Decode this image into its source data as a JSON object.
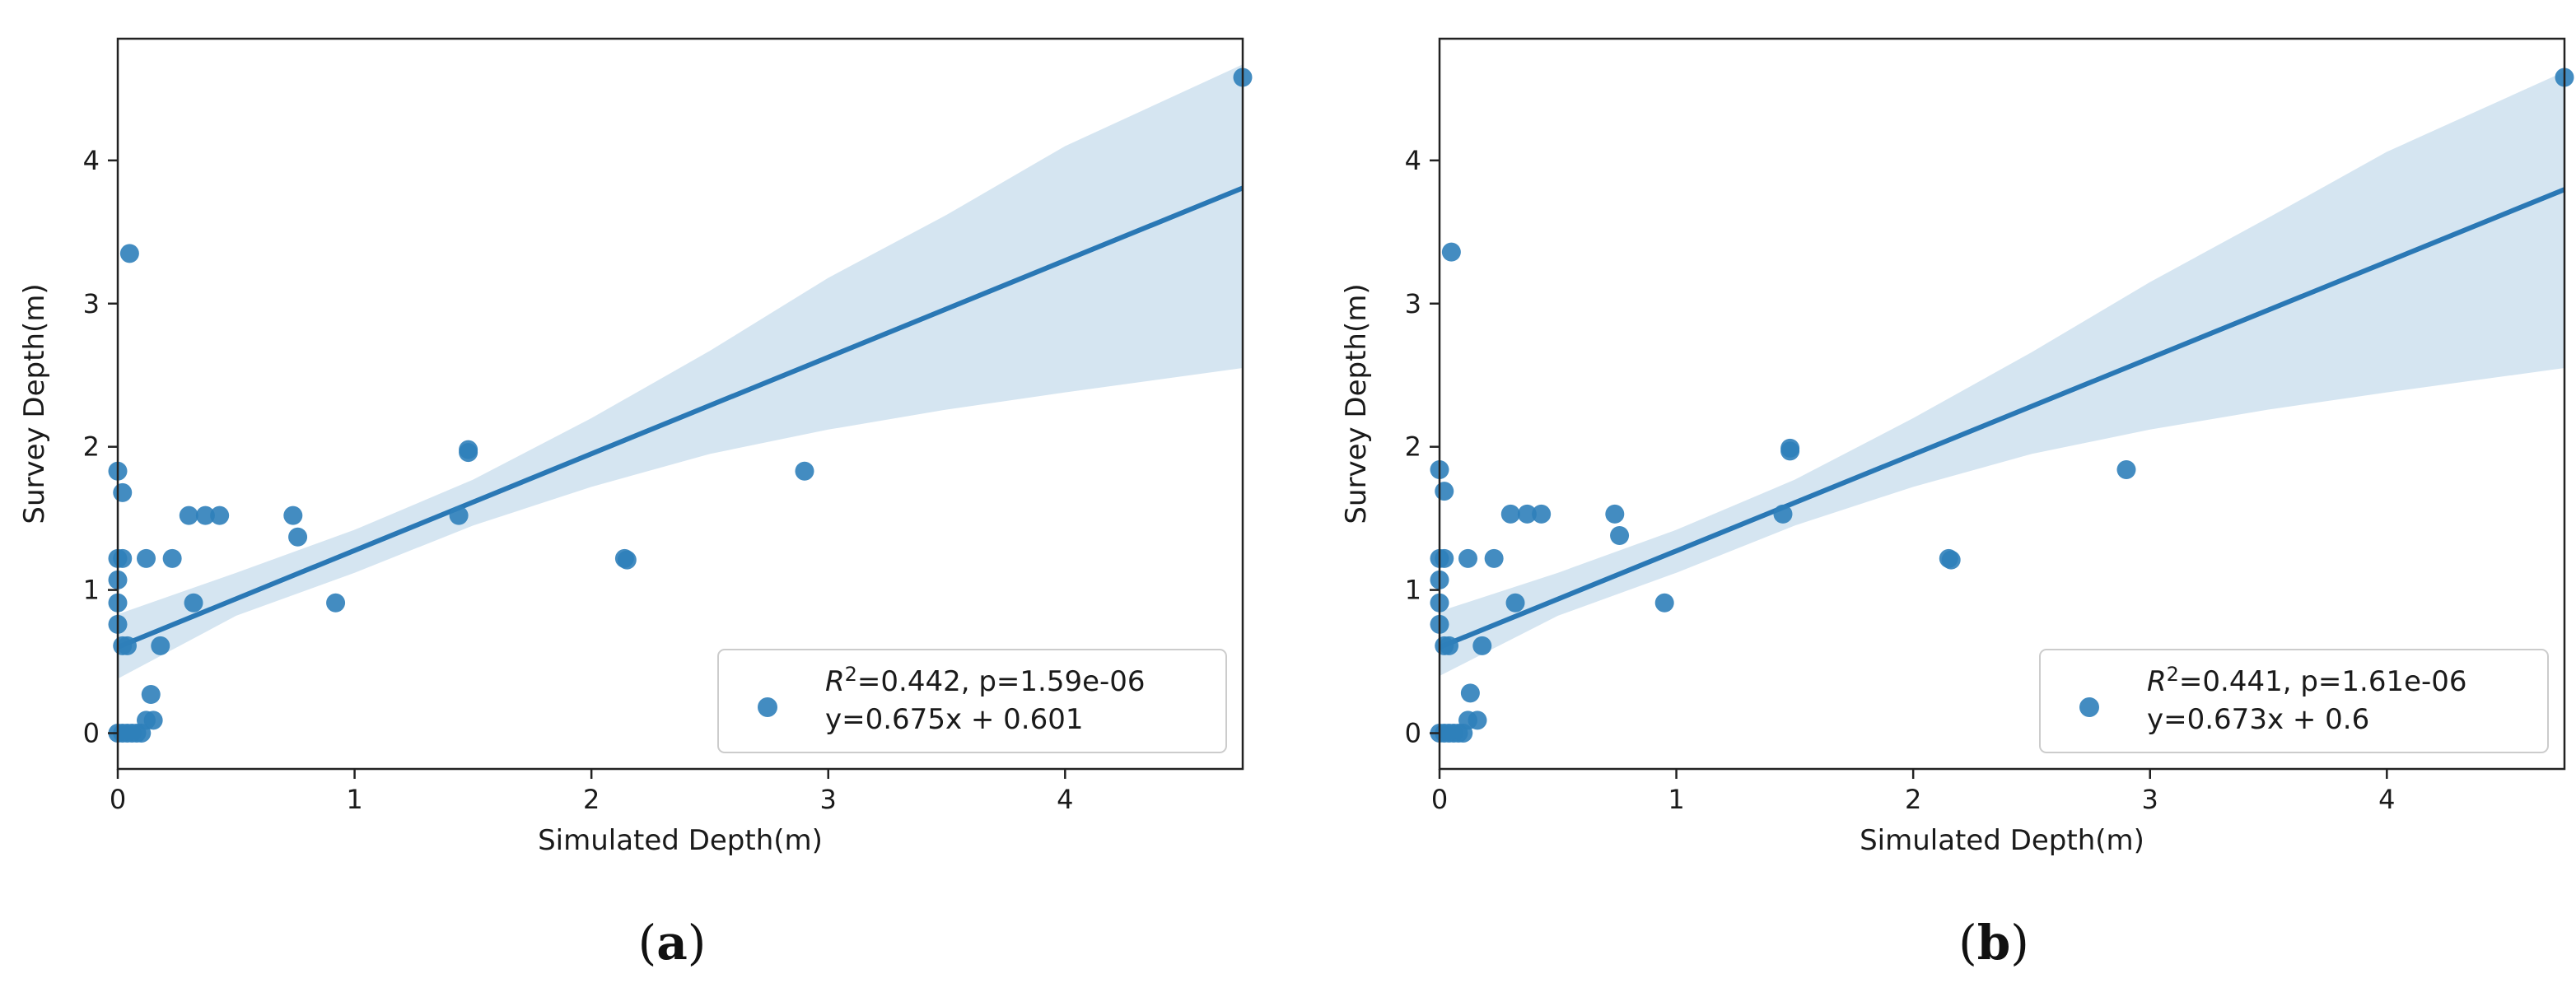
{
  "colors": {
    "point": "#2f7fba",
    "line": "#2a78b5",
    "band": "#d5e5f1",
    "axis": "#222222"
  },
  "chart_data": [
    {
      "type": "scatter",
      "panel_label_open": "(",
      "panel_label_letter": "a",
      "panel_label_close": ")",
      "xlabel": "Simulated Depth(m)",
      "ylabel": "Survey Depth(m)",
      "xlim": [
        0,
        4.75
      ],
      "ylim": [
        -0.25,
        4.85
      ],
      "xticks": [
        0,
        1,
        2,
        3,
        4
      ],
      "yticks": [
        0,
        1,
        2,
        3,
        4
      ],
      "regression": {
        "slope": 0.675,
        "intercept": 0.601
      },
      "confidence_band": [
        {
          "x": 0,
          "lower": 0.38,
          "upper": 0.83
        },
        {
          "x": 0.5,
          "lower": 0.82,
          "upper": 1.12
        },
        {
          "x": 1,
          "lower": 1.12,
          "upper": 1.42
        },
        {
          "x": 1.5,
          "lower": 1.45,
          "upper": 1.77
        },
        {
          "x": 2,
          "lower": 1.72,
          "upper": 2.2
        },
        {
          "x": 2.5,
          "lower": 1.95,
          "upper": 2.67
        },
        {
          "x": 3,
          "lower": 2.12,
          "upper": 3.18
        },
        {
          "x": 3.5,
          "lower": 2.26,
          "upper": 3.62
        },
        {
          "x": 4,
          "lower": 2.38,
          "upper": 4.1
        },
        {
          "x": 4.75,
          "lower": 2.55,
          "upper": 4.67
        }
      ],
      "points": [
        {
          "x": 4.75,
          "y": 4.58
        },
        {
          "x": 0.05,
          "y": 3.35
        },
        {
          "x": 1.48,
          "y": 1.98
        },
        {
          "x": 1.48,
          "y": 1.96
        },
        {
          "x": 2.9,
          "y": 1.83
        },
        {
          "x": 0.0,
          "y": 1.83
        },
        {
          "x": 0.02,
          "y": 1.68
        },
        {
          "x": 0.3,
          "y": 1.52
        },
        {
          "x": 0.37,
          "y": 1.52
        },
        {
          "x": 0.43,
          "y": 1.52
        },
        {
          "x": 0.74,
          "y": 1.52
        },
        {
          "x": 1.44,
          "y": 1.52
        },
        {
          "x": 0.76,
          "y": 1.37
        },
        {
          "x": 0.0,
          "y": 1.22
        },
        {
          "x": 0.02,
          "y": 1.22
        },
        {
          "x": 0.12,
          "y": 1.22
        },
        {
          "x": 0.23,
          "y": 1.22
        },
        {
          "x": 2.14,
          "y": 1.22
        },
        {
          "x": 2.15,
          "y": 1.21
        },
        {
          "x": 0.0,
          "y": 1.07
        },
        {
          "x": 0.0,
          "y": 0.91
        },
        {
          "x": 0.32,
          "y": 0.91
        },
        {
          "x": 0.92,
          "y": 0.91
        },
        {
          "x": 0.0,
          "y": 0.76
        },
        {
          "x": 0.02,
          "y": 0.61
        },
        {
          "x": 0.04,
          "y": 0.61
        },
        {
          "x": 0.18,
          "y": 0.61
        },
        {
          "x": 0.14,
          "y": 0.27
        },
        {
          "x": 0.12,
          "y": 0.09
        },
        {
          "x": 0.15,
          "y": 0.09
        },
        {
          "x": 0.0,
          "y": 0.0
        },
        {
          "x": 0.02,
          "y": 0.0
        },
        {
          "x": 0.04,
          "y": 0.0
        },
        {
          "x": 0.06,
          "y": 0.0
        },
        {
          "x": 0.08,
          "y": 0.0
        },
        {
          "x": 0.1,
          "y": 0.0
        }
      ],
      "legend": {
        "r2_value": "=0.442, p=1.59e-06",
        "equation": "y=0.675x + 0.601"
      }
    },
    {
      "type": "scatter",
      "panel_label_open": "(",
      "panel_label_letter": "b",
      "panel_label_close": ")",
      "xlabel": "Simulated Depth(m)",
      "ylabel": "Survey Depth(m)",
      "xlim": [
        0,
        4.75
      ],
      "ylim": [
        -0.25,
        4.85
      ],
      "xticks": [
        0,
        1,
        2,
        3,
        4
      ],
      "yticks": [
        0,
        1,
        2,
        3,
        4
      ],
      "regression": {
        "slope": 0.673,
        "intercept": 0.6
      },
      "confidence_band": [
        {
          "x": 0,
          "lower": 0.4,
          "upper": 0.85
        },
        {
          "x": 0.5,
          "lower": 0.82,
          "upper": 1.12
        },
        {
          "x": 1,
          "lower": 1.12,
          "upper": 1.42
        },
        {
          "x": 1.5,
          "lower": 1.45,
          "upper": 1.77
        },
        {
          "x": 2,
          "lower": 1.72,
          "upper": 2.2
        },
        {
          "x": 2.5,
          "lower": 1.95,
          "upper": 2.66
        },
        {
          "x": 3,
          "lower": 2.12,
          "upper": 3.15
        },
        {
          "x": 3.5,
          "lower": 2.26,
          "upper": 3.6
        },
        {
          "x": 4,
          "lower": 2.38,
          "upper": 4.06
        },
        {
          "x": 4.75,
          "lower": 2.55,
          "upper": 4.62
        }
      ],
      "points": [
        {
          "x": 4.75,
          "y": 4.58
        },
        {
          "x": 0.05,
          "y": 3.36
        },
        {
          "x": 1.48,
          "y": 1.99
        },
        {
          "x": 1.48,
          "y": 1.97
        },
        {
          "x": 2.9,
          "y": 1.84
        },
        {
          "x": 0.0,
          "y": 1.84
        },
        {
          "x": 0.02,
          "y": 1.69
        },
        {
          "x": 0.3,
          "y": 1.53
        },
        {
          "x": 0.37,
          "y": 1.53
        },
        {
          "x": 0.43,
          "y": 1.53
        },
        {
          "x": 0.74,
          "y": 1.53
        },
        {
          "x": 1.45,
          "y": 1.53
        },
        {
          "x": 0.76,
          "y": 1.38
        },
        {
          "x": 0.0,
          "y": 1.22
        },
        {
          "x": 0.02,
          "y": 1.22
        },
        {
          "x": 0.12,
          "y": 1.22
        },
        {
          "x": 0.23,
          "y": 1.22
        },
        {
          "x": 2.15,
          "y": 1.22
        },
        {
          "x": 2.16,
          "y": 1.21
        },
        {
          "x": 0.0,
          "y": 1.07
        },
        {
          "x": 0.0,
          "y": 0.91
        },
        {
          "x": 0.32,
          "y": 0.91
        },
        {
          "x": 0.95,
          "y": 0.91
        },
        {
          "x": 0.0,
          "y": 0.76
        },
        {
          "x": 0.02,
          "y": 0.61
        },
        {
          "x": 0.04,
          "y": 0.61
        },
        {
          "x": 0.18,
          "y": 0.61
        },
        {
          "x": 0.13,
          "y": 0.28
        },
        {
          "x": 0.12,
          "y": 0.09
        },
        {
          "x": 0.16,
          "y": 0.09
        },
        {
          "x": 0.0,
          "y": 0.0
        },
        {
          "x": 0.02,
          "y": 0.0
        },
        {
          "x": 0.04,
          "y": 0.0
        },
        {
          "x": 0.06,
          "y": 0.0
        },
        {
          "x": 0.08,
          "y": 0.0
        },
        {
          "x": 0.1,
          "y": 0.0
        }
      ],
      "legend": {
        "r2_value": "=0.441, p=1.61e-06",
        "equation": "y=0.673x + 0.6"
      }
    }
  ]
}
